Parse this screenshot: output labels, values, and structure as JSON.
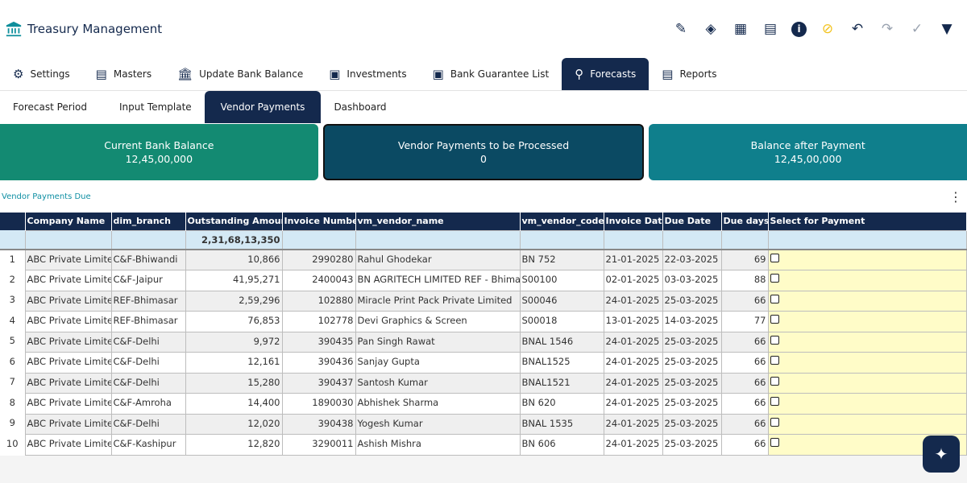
{
  "app": {
    "title": "Treasury Management"
  },
  "toolbar": [
    "pencil-icon",
    "layers-icon",
    "calculator-icon",
    "spreadsheet-icon",
    "info-icon",
    "eye-off-icon",
    "undo-icon",
    "redo-icon",
    "check-icon",
    "filter-icon"
  ],
  "tabs": [
    {
      "label": "Settings"
    },
    {
      "label": "Masters"
    },
    {
      "label": "Update Bank Balance"
    },
    {
      "label": "Investments"
    },
    {
      "label": "Bank Guarantee List"
    },
    {
      "label": "Forecasts"
    },
    {
      "label": "Reports"
    }
  ],
  "subtabs": [
    {
      "label": "Forecast Period"
    },
    {
      "label": "Input Template"
    },
    {
      "label": "Vendor Payments"
    },
    {
      "label": "Dashboard"
    }
  ],
  "cards": [
    {
      "title": "Current Bank Balance",
      "value": "12,45,00,000"
    },
    {
      "title": "Vendor Payments to be Processed",
      "value": "0"
    },
    {
      "title": "Balance after Payment",
      "value": "12,45,00,000"
    }
  ],
  "section": {
    "title": "Vendor Payments Due"
  },
  "table": {
    "headers": [
      "Company Name",
      "dim_branch",
      "Outstanding Amount",
      "Invoice Number",
      "vm_vendor_name",
      "vm_vendor_code",
      "Invoice Date",
      "Due Date",
      "Due days",
      "Select for Payment"
    ],
    "total": "2,31,68,13,350",
    "rows": [
      [
        "1",
        "ABC Private Limited",
        "C&F-Bhiwandi",
        "10,866",
        "2990280",
        "Rahul Ghodekar",
        "BN 752",
        "21-01-2025",
        "22-03-2025",
        "69"
      ],
      [
        "2",
        "ABC Private Limited",
        "C&F-Jaipur",
        "41,95,271",
        "2400043",
        "BN AGRITECH LIMITED REF - Bhimasar",
        "S00100",
        "02-01-2025",
        "03-03-2025",
        "88"
      ],
      [
        "3",
        "ABC Private Limited",
        "REF-Bhimasar",
        "2,59,296",
        "102880",
        "Miracle Print Pack Private Limited",
        "S00046",
        "24-01-2025",
        "25-03-2025",
        "66"
      ],
      [
        "4",
        "ABC Private Limited",
        "REF-Bhimasar",
        "76,853",
        "102778",
        "Devi Graphics & Screen",
        "S00018",
        "13-01-2025",
        "14-03-2025",
        "77"
      ],
      [
        "5",
        "ABC Private Limited",
        "C&F-Delhi",
        "9,972",
        "390435",
        "Pan Singh Rawat",
        "BNAL 1546",
        "24-01-2025",
        "25-03-2025",
        "66"
      ],
      [
        "6",
        "ABC Private Limited",
        "C&F-Delhi",
        "12,161",
        "390436",
        "Sanjay Gupta",
        "BNAL1525",
        "24-01-2025",
        "25-03-2025",
        "66"
      ],
      [
        "7",
        "ABC Private Limited",
        "C&F-Delhi",
        "15,280",
        "390437",
        "Santosh Kumar",
        "BNAL1521",
        "24-01-2025",
        "25-03-2025",
        "66"
      ],
      [
        "8",
        "ABC Private Limited",
        "C&F-Amroha",
        "14,400",
        "1890030",
        "Abhishek Sharma",
        "BN 620",
        "24-01-2025",
        "25-03-2025",
        "66"
      ],
      [
        "9",
        "ABC Private Limited",
        "C&F-Delhi",
        "12,020",
        "390438",
        "Yogesh Kumar",
        "BNAL 1535",
        "24-01-2025",
        "25-03-2025",
        "66"
      ],
      [
        "10",
        "ABC Private Limited",
        "C&F-Kashipur",
        "12,820",
        "3290011",
        "Ashish Mishra",
        "BN 606",
        "24-01-2025",
        "25-03-2025",
        "66"
      ]
    ]
  }
}
